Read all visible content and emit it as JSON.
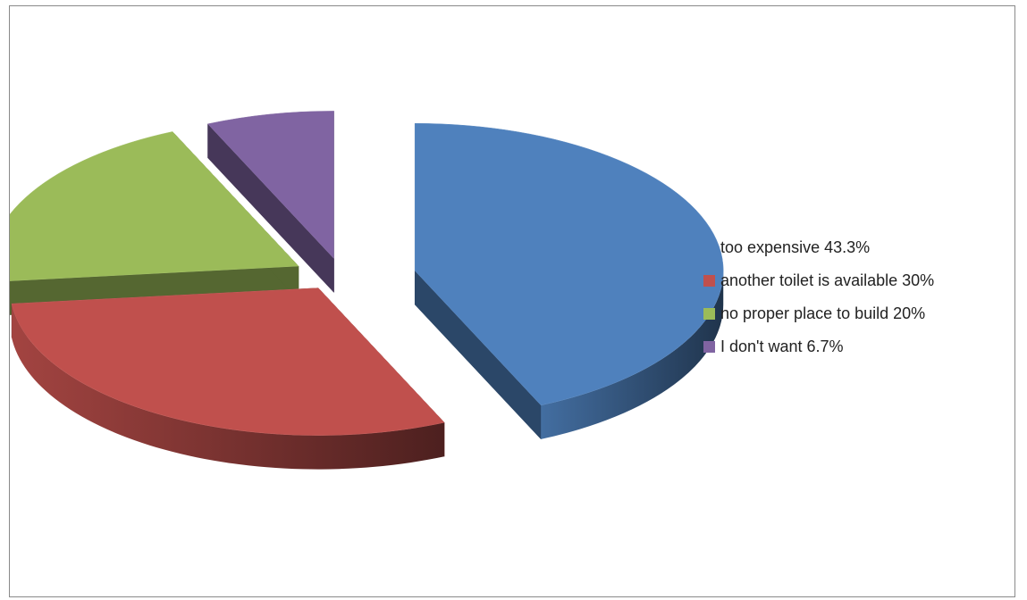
{
  "chart_data": {
    "type": "pie",
    "title": "",
    "style": "3d-exploded",
    "legend_position": "right",
    "slices": [
      {
        "label": "too expensive 43.3%",
        "value": 43.3,
        "color": "#4f81bd"
      },
      {
        "label": "another toilet is available 30%",
        "value": 30,
        "color": "#c0504d"
      },
      {
        "label": "no proper place to build 20%",
        "value": 20,
        "color": "#9bbb59"
      },
      {
        "label": "I don't want 6.7%",
        "value": 6.7,
        "color": "#8064a2"
      }
    ]
  }
}
